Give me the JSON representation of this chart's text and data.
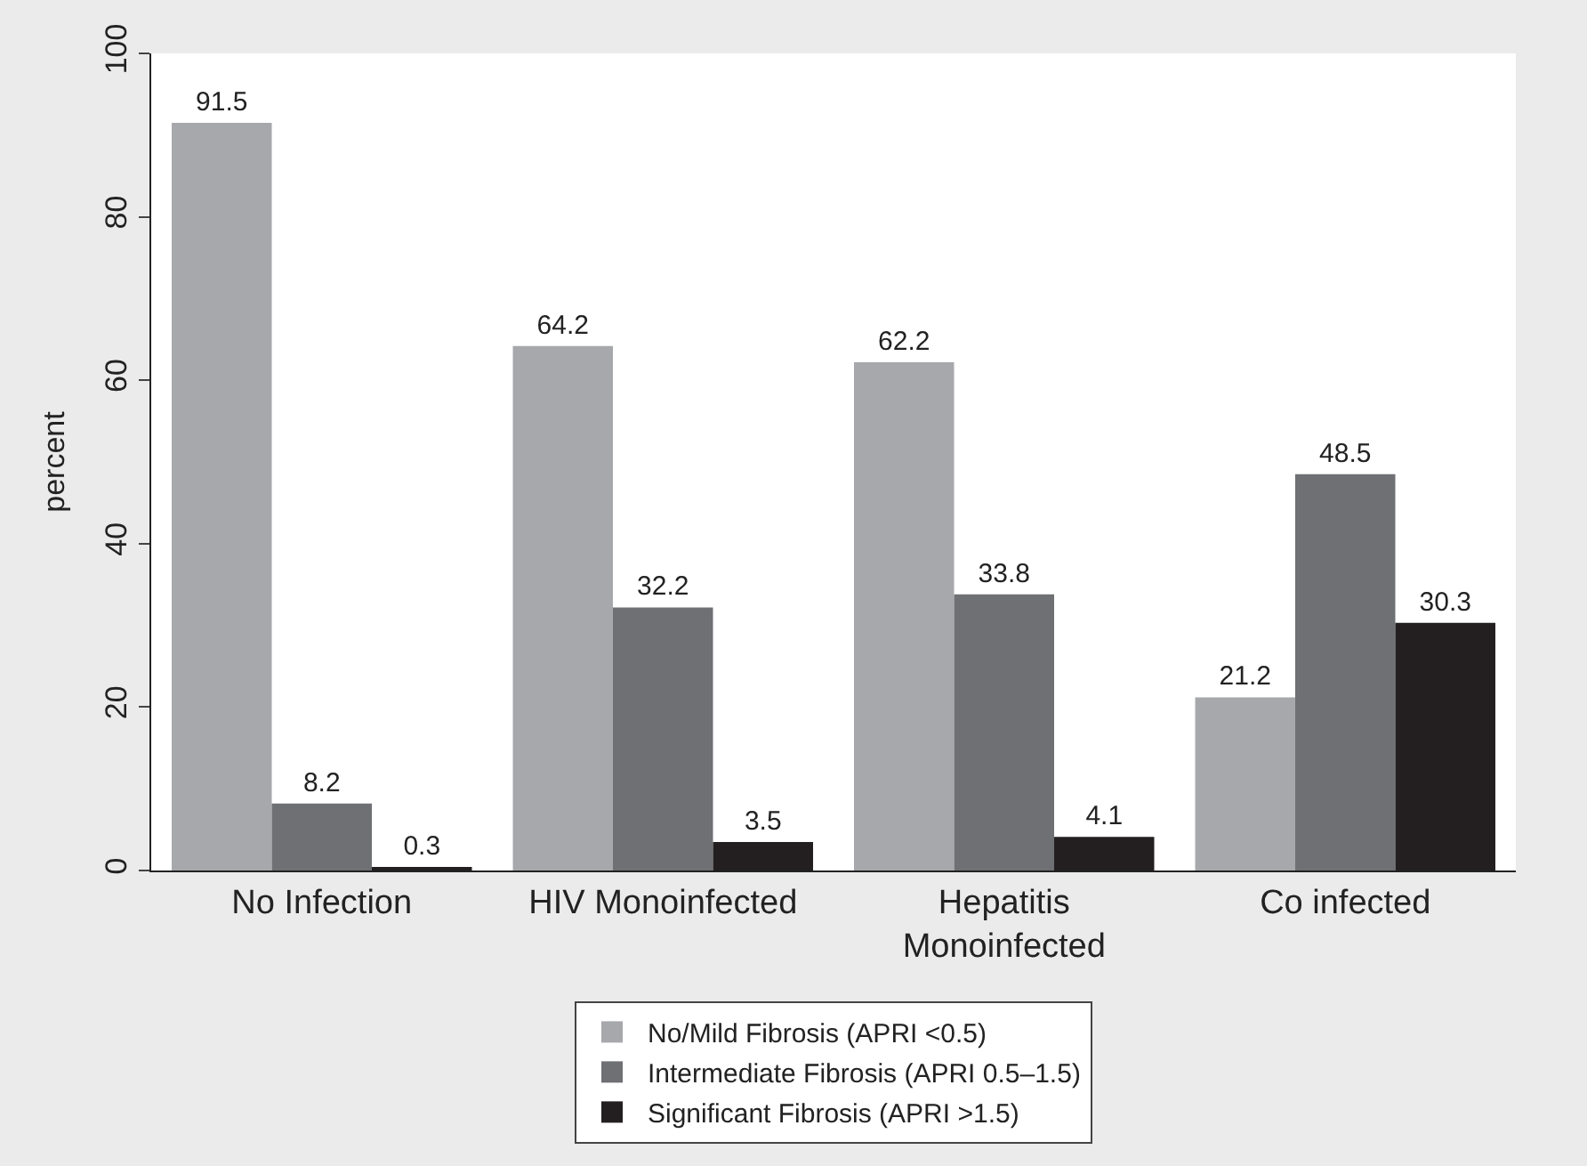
{
  "chart_data": {
    "type": "bar",
    "ylabel": "percent",
    "categories": [
      "No Infection",
      "HIV Monoinfected",
      "Hepatitis\nMonoinfected",
      "Co infected"
    ],
    "series": [
      {
        "name": "No/Mild Fibrosis (APRI <0.5)",
        "color": "#a7a8ac",
        "values": [
          91.5,
          64.2,
          62.2,
          21.2
        ]
      },
      {
        "name": "Intermediate Fibrosis (APRI 0.5–1.5)",
        "color": "#6f7074",
        "values": [
          8.2,
          32.2,
          33.8,
          48.5
        ]
      },
      {
        "name": "Significant Fibrosis (APRI >1.5)",
        "color": "#231f20",
        "values": [
          0.3,
          3.5,
          4.1,
          30.3
        ]
      }
    ],
    "ylim": [
      0,
      100
    ],
    "yticks": [
      0,
      20,
      40,
      60,
      80,
      100
    ],
    "legend": "bottom",
    "data_labels": true
  }
}
